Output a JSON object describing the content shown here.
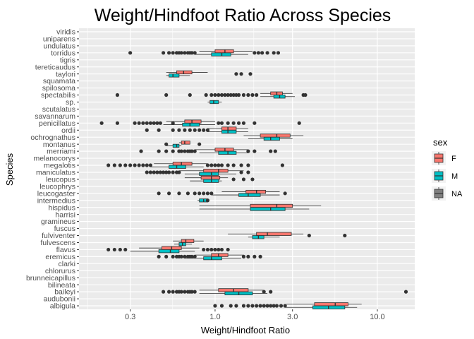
{
  "chart_data": {
    "type": "boxplot",
    "orientation": "horizontal",
    "title": "Weight/Hindfoot Ratio Across Species",
    "xlabel": "Weight/Hindfoot Ratio",
    "ylabel": "Species",
    "x_scale": "log10",
    "xlim": [
      0.145,
      17
    ],
    "x_ticks": [
      {
        "value": 0.3,
        "label": "0.3"
      },
      {
        "value": 1.0,
        "label": "1.0"
      },
      {
        "value": 3.0,
        "label": "3.0"
      },
      {
        "value": 10.0,
        "label": "10.0"
      }
    ],
    "grid": true,
    "legend": {
      "title": "sex",
      "position": "right",
      "entries": [
        {
          "label": "F",
          "color": "#F8766D"
        },
        {
          "label": "M",
          "color": "#00BFC4"
        },
        {
          "label": "NA",
          "color": "#7F7F7F"
        }
      ]
    },
    "species": [
      "albigula",
      "audubonii",
      "baileyi",
      "bilineata",
      "brunneicapillus",
      "chlorurus",
      "clarki",
      "eremicus",
      "flavus",
      "fulvescens",
      "fulviventer",
      "fuscus",
      "gramineus",
      "harrisi",
      "hispidus",
      "intermedius",
      "leucogaster",
      "leucophrys",
      "leucopus",
      "maniculatus",
      "megalotis",
      "melanocorys",
      "merriami",
      "montanus",
      "ochrognathus",
      "ordii",
      "penicillatus",
      "savannarum",
      "scutalatus",
      "sp.",
      "spectabilis",
      "spilosoma",
      "squamata",
      "taylori",
      "tereticaudus",
      "tigris",
      "torridus",
      "undulatus",
      "uniparens",
      "viridis"
    ],
    "boxes": [
      {
        "species": "albigula",
        "sex": "F",
        "q1": 4.1,
        "median": 5.5,
        "q3": 6.6,
        "lo": 2.75,
        "hi": 8.0
      },
      {
        "species": "albigula",
        "sex": "M",
        "q1": 4.0,
        "median": 5.0,
        "q3": 6.3,
        "lo": 2.7,
        "hi": 7.5
      },
      {
        "species": "baileyi",
        "sex": "F",
        "q1": 1.05,
        "median": 1.3,
        "q3": 1.6,
        "lo": 0.8,
        "hi": 2.0
      },
      {
        "species": "baileyi",
        "sex": "M",
        "q1": 1.15,
        "median": 1.4,
        "q3": 1.7,
        "lo": 0.8,
        "hi": 2.1
      },
      {
        "species": "eremicus",
        "sex": "F",
        "q1": 0.95,
        "median": 1.05,
        "q3": 1.2,
        "lo": 0.75,
        "hi": 1.5
      },
      {
        "species": "eremicus",
        "sex": "M",
        "q1": 0.85,
        "median": 0.95,
        "q3": 1.1,
        "lo": 0.65,
        "hi": 1.45
      },
      {
        "species": "flavus",
        "sex": "F",
        "q1": 0.47,
        "median": 0.54,
        "q3": 0.62,
        "lo": 0.34,
        "hi": 0.8
      },
      {
        "species": "flavus",
        "sex": "M",
        "q1": 0.45,
        "median": 0.53,
        "q3": 0.6,
        "lo": 0.3,
        "hi": 0.75
      },
      {
        "species": "fulvescens",
        "sex": "F",
        "q1": 0.62,
        "median": 0.66,
        "q3": 0.74,
        "lo": 0.55,
        "hi": 0.85
      },
      {
        "species": "fulvescens",
        "sex": "M",
        "q1": 0.6,
        "median": 0.63,
        "q3": 0.66,
        "lo": 0.56,
        "hi": 0.72
      },
      {
        "species": "fulviventer",
        "sex": "F",
        "q1": 1.8,
        "median": 2.1,
        "q3": 2.95,
        "lo": 1.2,
        "hi": 3.5
      },
      {
        "species": "fulviventer",
        "sex": "M",
        "q1": 1.7,
        "median": 1.85,
        "q3": 2.0,
        "lo": 1.6,
        "hi": 2.5
      },
      {
        "species": "hispidus",
        "sex": "F",
        "q1": 1.65,
        "median": 2.4,
        "q3": 3.0,
        "lo": 0.8,
        "hi": 4.5
      },
      {
        "species": "hispidus",
        "sex": "M",
        "q1": 1.65,
        "median": 2.2,
        "q3": 2.7,
        "lo": 0.8,
        "hi": 3.8
      },
      {
        "species": "intermedius",
        "sex": "M",
        "q1": 0.8,
        "median": 0.85,
        "q3": 0.9,
        "lo": 0.78,
        "hi": 0.9
      },
      {
        "species": "leucogaster",
        "sex": "F",
        "q1": 1.55,
        "median": 1.8,
        "q3": 2.05,
        "lo": 1.1,
        "hi": 2.5
      },
      {
        "species": "leucogaster",
        "sex": "M",
        "q1": 1.4,
        "median": 1.6,
        "q3": 1.9,
        "lo": 0.95,
        "hi": 2.5
      },
      {
        "species": "leucopus",
        "sex": "F",
        "q1": 0.82,
        "median": 0.95,
        "q3": 1.07,
        "lo": 0.65,
        "hi": 1.2
      },
      {
        "species": "leucopus",
        "sex": "M",
        "q1": 0.85,
        "median": 0.95,
        "q3": 1.05,
        "lo": 0.7,
        "hi": 1.1
      },
      {
        "species": "maniculatus",
        "sex": "F",
        "q1": 0.85,
        "median": 1.05,
        "q3": 1.2,
        "lo": 0.6,
        "hi": 1.5
      },
      {
        "species": "maniculatus",
        "sex": "M",
        "q1": 0.8,
        "median": 0.95,
        "q3": 1.05,
        "lo": 0.65,
        "hi": 1.35
      },
      {
        "species": "megalotis",
        "sex": "F",
        "q1": 0.55,
        "median": 0.62,
        "q3": 0.72,
        "lo": 0.42,
        "hi": 0.9
      },
      {
        "species": "megalotis",
        "sex": "M",
        "q1": 0.52,
        "median": 0.58,
        "q3": 0.66,
        "lo": 0.4,
        "hi": 0.85
      },
      {
        "species": "merriami",
        "sex": "F",
        "q1": 1.0,
        "median": 1.15,
        "q3": 1.3,
        "lo": 0.75,
        "hi": 1.6
      },
      {
        "species": "merriami",
        "sex": "M",
        "q1": 1.05,
        "median": 1.2,
        "q3": 1.35,
        "lo": 0.8,
        "hi": 1.6
      },
      {
        "species": "montanus",
        "sex": "F",
        "q1": 0.62,
        "median": 0.65,
        "q3": 0.7,
        "lo": 0.6,
        "hi": 0.7
      },
      {
        "species": "montanus",
        "sex": "M",
        "q1": 0.55,
        "median": 0.58,
        "q3": 0.6,
        "lo": 0.5,
        "hi": 0.62
      },
      {
        "species": "ochrognathus",
        "sex": "F",
        "q1": 1.9,
        "median": 2.4,
        "q3": 2.9,
        "lo": 1.5,
        "hi": 3.5
      },
      {
        "species": "ochrognathus",
        "sex": "M",
        "q1": 2.0,
        "median": 2.2,
        "q3": 2.5,
        "lo": 1.6,
        "hi": 3.0
      },
      {
        "species": "ordii",
        "sex": "F",
        "q1": 1.1,
        "median": 1.2,
        "q3": 1.35,
        "lo": 0.9,
        "hi": 1.6
      },
      {
        "species": "ordii",
        "sex": "M",
        "q1": 1.1,
        "median": 1.2,
        "q3": 1.35,
        "lo": 0.9,
        "hi": 1.6
      },
      {
        "species": "penicillatus",
        "sex": "F",
        "q1": 0.65,
        "median": 0.72,
        "q3": 0.82,
        "lo": 0.5,
        "hi": 1.0
      },
      {
        "species": "penicillatus",
        "sex": "M",
        "q1": 0.63,
        "median": 0.7,
        "q3": 0.8,
        "lo": 0.48,
        "hi": 1.0
      },
      {
        "species": "sp.",
        "sex": "M",
        "q1": 0.93,
        "median": 0.98,
        "q3": 1.05,
        "lo": 0.9,
        "hi": 1.1
      },
      {
        "species": "spectabilis",
        "sex": "F",
        "q1": 2.2,
        "median": 2.4,
        "q3": 2.6,
        "lo": 1.9,
        "hi": 3.0
      },
      {
        "species": "spectabilis",
        "sex": "M",
        "q1": 2.3,
        "median": 2.5,
        "q3": 2.7,
        "lo": 1.9,
        "hi": 3.1
      },
      {
        "species": "taylori",
        "sex": "F",
        "q1": 0.58,
        "median": 0.64,
        "q3": 0.72,
        "lo": 0.5,
        "hi": 0.9
      },
      {
        "species": "taylori",
        "sex": "M",
        "q1": 0.52,
        "median": 0.55,
        "q3": 0.6,
        "lo": 0.5,
        "hi": 0.7
      },
      {
        "species": "torridus",
        "sex": "F",
        "q1": 1.0,
        "median": 1.15,
        "q3": 1.3,
        "lo": 0.8,
        "hi": 1.7
      },
      {
        "species": "torridus",
        "sex": "M",
        "q1": 0.95,
        "median": 1.1,
        "q3": 1.25,
        "lo": 0.75,
        "hi": 1.6
      }
    ],
    "outliers": [
      {
        "species": "albigula",
        "x": [
          1.0,
          1.1,
          1.25,
          1.35,
          1.5,
          1.6,
          1.7,
          1.8,
          1.9,
          2.0,
          2.1,
          2.2,
          2.3,
          2.4,
          2.55,
          2.7
        ]
      },
      {
        "species": "baileyi",
        "x": [
          0.48,
          0.52,
          0.55,
          0.58,
          0.6,
          0.62,
          0.65,
          0.68,
          0.7,
          0.72,
          0.75,
          2.0,
          2.2,
          15.0
        ]
      },
      {
        "species": "eremicus",
        "x": [
          0.45,
          0.5,
          0.55,
          0.58,
          0.6,
          0.62,
          0.65,
          0.68,
          0.7,
          0.72,
          0.75,
          1.5,
          1.6,
          1.75,
          1.9
        ]
      },
      {
        "species": "flavus",
        "x": [
          0.22,
          0.24,
          0.26,
          0.28,
          0.85,
          0.9,
          0.95,
          1.0,
          1.05,
          1.1,
          1.2
        ]
      },
      {
        "species": "fulviventer",
        "x": [
          3.8,
          6.3
        ]
      },
      {
        "species": "intermedius",
        "x": [
          0.9
        ]
      },
      {
        "species": "leucogaster",
        "x": [
          0.45,
          0.52,
          0.6,
          0.68,
          0.75,
          0.8,
          0.85,
          0.9,
          0.95,
          2.7
        ]
      },
      {
        "species": "leucopus",
        "x": [
          1.3,
          1.5,
          1.7
        ]
      },
      {
        "species": "maniculatus",
        "x": [
          0.38,
          0.4,
          0.42,
          0.44,
          0.46,
          0.48,
          0.5,
          0.52,
          0.55,
          0.58,
          0.6,
          1.45,
          1.6
        ]
      },
      {
        "species": "megalotis",
        "x": [
          0.22,
          0.24,
          0.26,
          0.28,
          0.3,
          0.32,
          0.34,
          0.36,
          0.38,
          0.4,
          0.9,
          0.95,
          1.0,
          1.05,
          1.1,
          1.2,
          1.3,
          1.45,
          1.6,
          2.6
        ]
      },
      {
        "species": "merriami",
        "x": [
          0.35,
          0.45,
          0.5,
          0.55,
          0.6,
          0.62,
          0.65,
          0.68,
          0.7,
          0.72,
          0.75,
          1.6,
          1.75,
          2.2,
          2.35
        ]
      },
      {
        "species": "montanus",
        "x": [
          0.5,
          0.8
        ]
      },
      {
        "species": "ordii",
        "x": [
          0.38,
          0.45,
          0.55,
          0.6,
          0.65,
          0.7,
          0.75,
          0.8,
          0.85,
          0.9
        ]
      },
      {
        "species": "penicillatus",
        "x": [
          0.2,
          0.25,
          0.32,
          0.34,
          0.36,
          0.38,
          0.4,
          0.42,
          0.44,
          0.46,
          0.55,
          1.05,
          1.1,
          1.2,
          1.3,
          1.4,
          1.5,
          1.75,
          3.3
        ]
      },
      {
        "species": "spectabilis",
        "x": [
          0.25,
          0.5,
          0.7,
          0.88,
          0.95,
          1.0,
          1.05,
          1.1,
          1.15,
          1.2,
          1.25,
          1.3,
          1.35,
          1.4,
          1.5,
          1.6,
          1.7,
          1.8,
          3.5,
          3.6
        ]
      },
      {
        "species": "taylori",
        "x": [
          1.35,
          1.45,
          1.65
        ]
      },
      {
        "species": "torridus",
        "x": [
          0.3,
          0.48,
          0.52,
          0.55,
          0.58,
          0.6,
          0.62,
          0.65,
          0.68,
          0.7,
          0.72,
          0.75,
          1.75,
          1.85,
          1.95,
          2.1,
          2.3,
          2.45
        ]
      }
    ]
  }
}
